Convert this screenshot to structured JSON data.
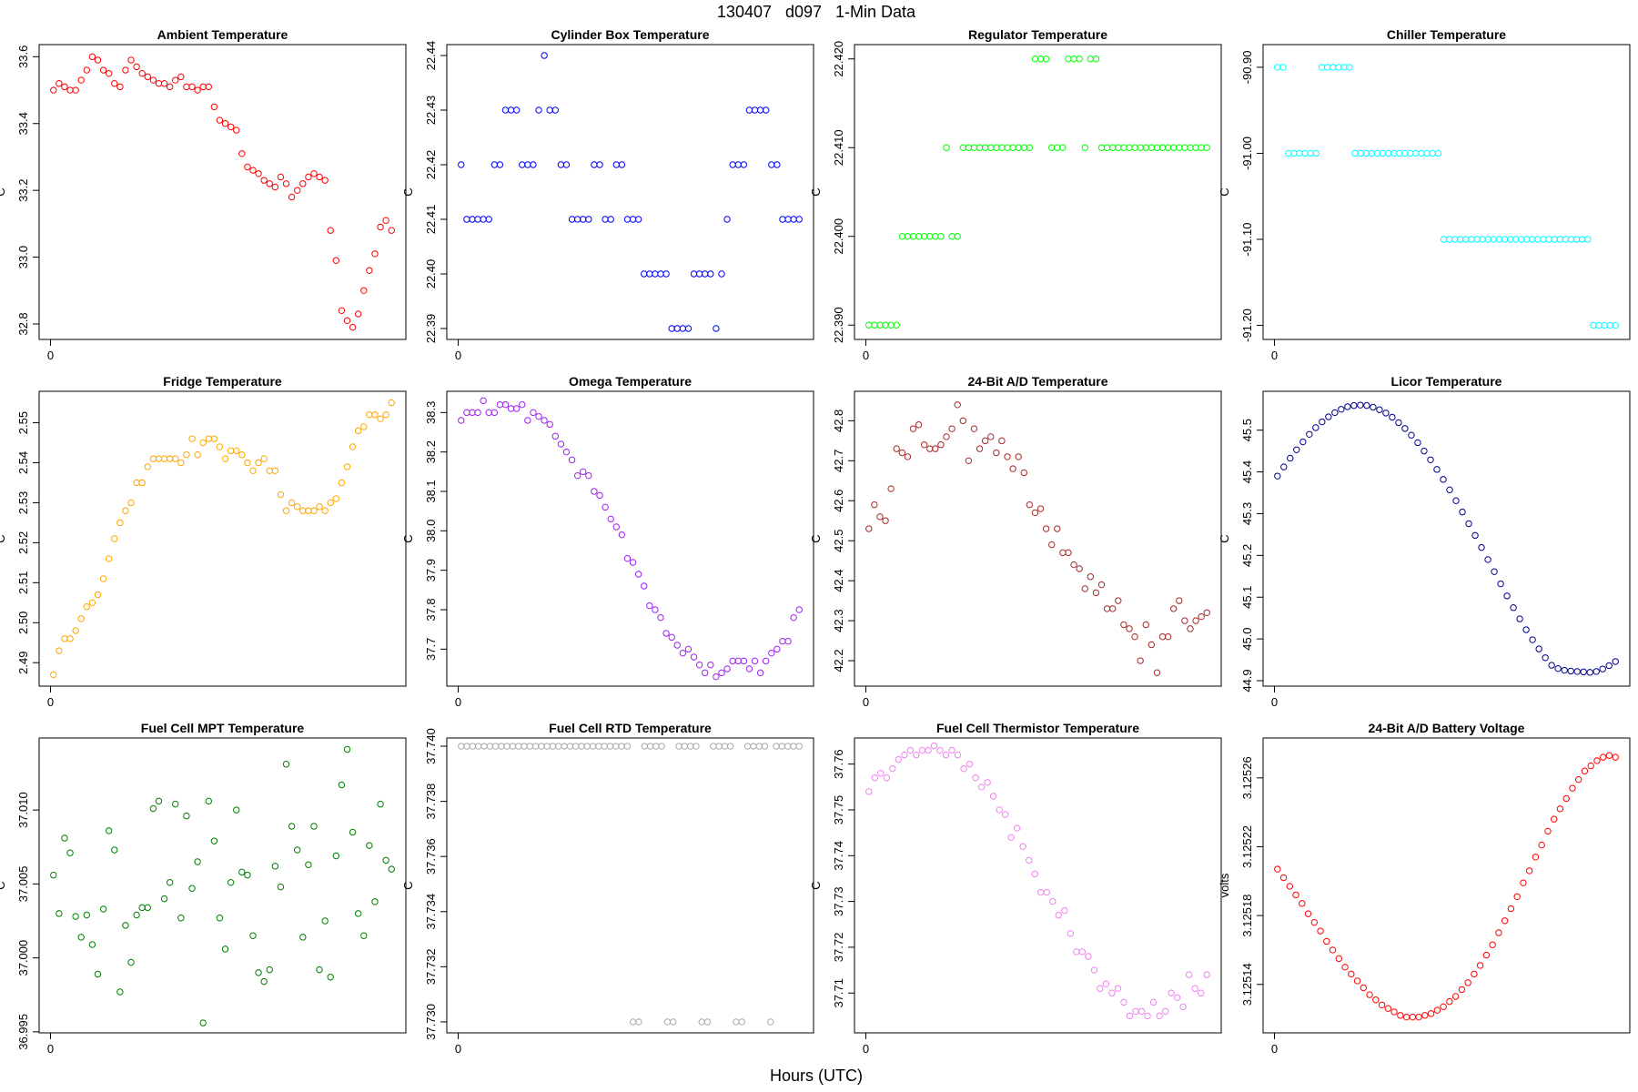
{
  "page": {
    "title": "130407   d097   1-Min Data",
    "xlabel": "Hours (UTC)"
  },
  "chart_data": [
    {
      "type": "scatter",
      "title": "Ambient Temperature",
      "ylabel": "C",
      "color": "#ff0000",
      "xlim": [
        -1,
        59
      ],
      "xticks": [
        "0"
      ],
      "ylim": [
        32.77,
        33.62
      ],
      "yticks": [
        "32.8",
        "33.0",
        "33.2",
        "33.4",
        "33.6"
      ],
      "ytickvals": [
        32.8,
        33.0,
        33.2,
        33.4,
        33.6
      ],
      "grid": false,
      "values": [
        33.5,
        33.52,
        33.51,
        33.5,
        33.5,
        33.53,
        33.56,
        33.6,
        33.59,
        33.56,
        33.55,
        33.52,
        33.51,
        33.56,
        33.59,
        33.57,
        33.55,
        33.54,
        33.53,
        33.52,
        33.52,
        33.51,
        33.53,
        33.54,
        33.51,
        33.51,
        33.5,
        33.51,
        33.51,
        33.45,
        33.41,
        33.4,
        33.39,
        33.38,
        33.31,
        33.27,
        33.26,
        33.25,
        33.23,
        33.22,
        33.21,
        33.24,
        33.22,
        33.18,
        33.2,
        33.22,
        33.24,
        33.25,
        33.24,
        33.23,
        33.08,
        32.99,
        32.84,
        32.81,
        32.79,
        32.83,
        32.9,
        32.96,
        33.01,
        33.09,
        33.11,
        33.08
      ]
    },
    {
      "type": "scatter",
      "title": "Cylinder Box Temperature",
      "ylabel": "C",
      "color": "#0000ff",
      "xlim": [
        -1,
        59
      ],
      "xticks": [
        "0"
      ],
      "ylim": [
        22.389,
        22.441
      ],
      "yticks": [
        "22.39",
        "22.40",
        "22.41",
        "22.42",
        "22.43",
        "22.44"
      ],
      "ytickvals": [
        22.39,
        22.4,
        22.41,
        22.42,
        22.43,
        22.44
      ],
      "grid": false,
      "values": [
        22.42,
        22.41,
        22.41,
        22.41,
        22.41,
        22.41,
        22.42,
        22.42,
        22.43,
        22.43,
        22.43,
        22.42,
        22.42,
        22.42,
        22.43,
        22.44,
        22.43,
        22.43,
        22.42,
        22.42,
        22.41,
        22.41,
        22.41,
        22.41,
        22.42,
        22.42,
        22.41,
        22.41,
        22.42,
        22.42,
        22.41,
        22.41,
        22.41,
        22.4,
        22.4,
        22.4,
        22.4,
        22.4,
        22.39,
        22.39,
        22.39,
        22.39,
        22.4,
        22.4,
        22.4,
        22.4,
        22.39,
        22.4,
        22.41,
        22.42,
        22.42,
        22.42,
        22.43,
        22.43,
        22.43,
        22.43,
        22.42,
        22.42,
        22.41,
        22.41,
        22.41,
        22.41
      ]
    },
    {
      "type": "scatter",
      "title": "Regulator Temperature",
      "ylabel": "C",
      "color": "#00ff00",
      "xlim": [
        -1,
        59
      ],
      "xticks": [
        "0"
      ],
      "ylim": [
        22.389,
        22.421
      ],
      "yticks": [
        "22.390",
        "22.400",
        "22.410",
        "22.420"
      ],
      "ytickvals": [
        22.39,
        22.4,
        22.41,
        22.42
      ],
      "grid": false,
      "values": [
        22.39,
        22.39,
        22.39,
        22.39,
        22.39,
        22.39,
        22.4,
        22.4,
        22.4,
        22.4,
        22.4,
        22.4,
        22.4,
        22.4,
        22.41,
        22.4,
        22.4,
        22.41,
        22.41,
        22.41,
        22.41,
        22.41,
        22.41,
        22.41,
        22.41,
        22.41,
        22.41,
        22.41,
        22.41,
        22.41,
        22.42,
        22.42,
        22.42,
        22.41,
        22.41,
        22.41,
        22.42,
        22.42,
        22.42,
        22.41,
        22.42,
        22.42,
        22.41,
        22.41,
        22.41,
        22.41,
        22.41,
        22.41,
        22.41,
        22.41,
        22.41,
        22.41,
        22.41,
        22.41,
        22.41,
        22.41,
        22.41,
        22.41,
        22.41,
        22.41,
        22.41,
        22.41
      ]
    },
    {
      "type": "scatter",
      "title": "Chiller Temperature",
      "ylabel": "C",
      "color": "#00ffff",
      "xlim": [
        -1,
        59
      ],
      "xticks": [
        "0"
      ],
      "ylim": [
        -91.21,
        -90.88
      ],
      "yticks": [
        "-91.20",
        "-91.10",
        "-91.00",
        "-90.90"
      ],
      "ytickvals": [
        -91.2,
        -91.1,
        -91.0,
        -90.9
      ],
      "grid": false,
      "values": [
        -90.9,
        -90.9,
        -91.0,
        -91.0,
        -91.0,
        -91.0,
        -91.0,
        -91.0,
        -90.9,
        -90.9,
        -90.9,
        -90.9,
        -90.9,
        -90.9,
        -91.0,
        -91.0,
        -91.0,
        -91.0,
        -91.0,
        -91.0,
        -91.0,
        -91.0,
        -91.0,
        -91.0,
        -91.0,
        -91.0,
        -91.0,
        -91.0,
        -91.0,
        -91.0,
        -91.1,
        -91.1,
        -91.1,
        -91.1,
        -91.1,
        -91.1,
        -91.1,
        -91.1,
        -91.1,
        -91.1,
        -91.1,
        -91.1,
        -91.1,
        -91.1,
        -91.1,
        -91.1,
        -91.1,
        -91.1,
        -91.1,
        -91.1,
        -91.1,
        -91.1,
        -91.1,
        -91.1,
        -91.1,
        -91.1,
        -91.1,
        -91.2,
        -91.2,
        -91.2,
        -91.2,
        -91.2
      ]
    },
    {
      "type": "scatter",
      "title": "Fridge Temperature",
      "ylabel": "C",
      "color": "#ffa500",
      "xlim": [
        -1,
        59
      ],
      "xticks": [
        "0"
      ],
      "ylim": [
        2.4855,
        2.5565
      ],
      "yticks": [
        "2.49",
        "2.50",
        "2.51",
        "2.52",
        "2.53",
        "2.54",
        "2.55"
      ],
      "ytickvals": [
        2.49,
        2.5,
        2.51,
        2.52,
        2.53,
        2.54,
        2.55
      ],
      "grid": false,
      "values": [
        2.487,
        2.493,
        2.496,
        2.496,
        2.498,
        2.501,
        2.504,
        2.505,
        2.507,
        2.511,
        2.516,
        2.521,
        2.525,
        2.528,
        2.53,
        2.535,
        2.535,
        2.539,
        2.541,
        2.541,
        2.541,
        2.541,
        2.541,
        2.54,
        2.542,
        2.546,
        2.542,
        2.545,
        2.546,
        2.546,
        2.544,
        2.541,
        2.543,
        2.543,
        2.542,
        2.54,
        2.538,
        2.54,
        2.541,
        2.538,
        2.538,
        2.532,
        2.528,
        2.53,
        2.529,
        2.528,
        2.528,
        2.528,
        2.529,
        2.528,
        2.53,
        2.531,
        2.535,
        2.539,
        2.544,
        2.548,
        2.549,
        2.552,
        2.552,
        2.551,
        2.552,
        2.555
      ]
    },
    {
      "type": "scatter",
      "title": "Omega Temperature",
      "ylabel": "C",
      "color": "#a020f0",
      "xlim": [
        -1,
        59
      ],
      "xticks": [
        "0"
      ],
      "ylim": [
        37.62,
        38.34
      ],
      "yticks": [
        "37.7",
        "37.8",
        "37.9",
        "38.0",
        "38.1",
        "38.2",
        "38.3"
      ],
      "ytickvals": [
        37.7,
        37.8,
        37.9,
        38.0,
        38.1,
        38.2,
        38.3
      ],
      "grid": false,
      "values": [
        38.28,
        38.3,
        38.3,
        38.3,
        38.33,
        38.3,
        38.3,
        38.32,
        38.32,
        38.31,
        38.31,
        38.32,
        38.28,
        38.3,
        38.29,
        38.28,
        38.27,
        38.24,
        38.22,
        38.2,
        38.18,
        38.14,
        38.15,
        38.14,
        38.1,
        38.09,
        38.06,
        38.03,
        38.01,
        37.99,
        37.93,
        37.92,
        37.89,
        37.86,
        37.81,
        37.8,
        37.78,
        37.74,
        37.73,
        37.71,
        37.69,
        37.7,
        37.68,
        37.66,
        37.64,
        37.66,
        37.63,
        37.64,
        37.65,
        37.67,
        37.67,
        37.67,
        37.65,
        37.67,
        37.64,
        37.67,
        37.69,
        37.7,
        37.72,
        37.72,
        37.78,
        37.8
      ]
    },
    {
      "type": "scatter",
      "title": "24-Bit A/D Temperature",
      "ylabel": "C",
      "color": "#a52a2a",
      "xlim": [
        -1,
        59
      ],
      "xticks": [
        "0"
      ],
      "ylim": [
        42.15,
        42.86
      ],
      "yticks": [
        "42.2",
        "42.3",
        "42.4",
        "42.5",
        "42.6",
        "42.7",
        "42.8"
      ],
      "ytickvals": [
        42.2,
        42.3,
        42.4,
        42.5,
        42.6,
        42.7,
        42.8
      ],
      "grid": false,
      "values": [
        42.53,
        42.59,
        42.56,
        42.55,
        42.63,
        42.73,
        42.72,
        42.71,
        42.78,
        42.79,
        42.74,
        42.73,
        42.73,
        42.74,
        42.76,
        42.78,
        42.84,
        42.8,
        42.7,
        42.78,
        42.73,
        42.75,
        42.76,
        42.72,
        42.75,
        42.71,
        42.68,
        42.71,
        42.67,
        42.59,
        42.57,
        42.58,
        42.53,
        42.49,
        42.53,
        42.47,
        42.47,
        42.44,
        42.43,
        42.38,
        42.41,
        42.37,
        42.39,
        42.33,
        42.33,
        42.35,
        42.29,
        42.28,
        42.26,
        42.2,
        42.29,
        42.24,
        42.17,
        42.26,
        42.26,
        42.33,
        42.35,
        42.3,
        42.28,
        42.3,
        42.31,
        42.32
      ]
    },
    {
      "type": "scatter",
      "title": "Licor Temperature",
      "ylabel": "C",
      "color": "#00008b",
      "xlim": [
        -1,
        59
      ],
      "xticks": [
        "0"
      ],
      "ylim": [
        44.9,
        45.58
      ],
      "yticks": [
        "44.9",
        "45.0",
        "45.1",
        "45.2",
        "45.3",
        "45.4",
        "45.5"
      ],
      "ytickvals": [
        44.9,
        45.0,
        45.1,
        45.2,
        45.3,
        45.4,
        45.5
      ],
      "grid": false,
      "values": [
        45.39,
        45.412,
        45.433,
        45.453,
        45.472,
        45.49,
        45.506,
        45.52,
        45.532,
        45.542,
        45.55,
        45.556,
        45.559,
        45.56,
        45.559,
        45.555,
        45.549,
        45.541,
        45.531,
        45.518,
        45.504,
        45.488,
        45.47,
        45.45,
        45.429,
        45.406,
        45.382,
        45.357,
        45.331,
        45.304,
        45.276,
        45.248,
        45.219,
        45.19,
        45.161,
        45.132,
        45.103,
        45.075,
        45.048,
        45.022,
        44.998,
        44.976,
        44.955,
        44.937,
        44.929,
        44.925,
        44.923,
        44.922,
        44.921,
        44.92,
        44.922,
        44.928,
        44.936,
        44.946
      ]
    },
    {
      "type": "scatter",
      "title": "Fuel Cell MPT Temperature",
      "ylabel": "C",
      "color": "#008000",
      "xlim": [
        -1,
        59
      ],
      "xticks": [
        "0"
      ],
      "ylim": [
        36.9953,
        37.0145
      ],
      "yticks": [
        "36.995",
        "37.000",
        "37.005",
        "37.010"
      ],
      "ytickvals": [
        36.995,
        37.0,
        37.005,
        37.01
      ],
      "grid": false,
      "values": [
        37.0056,
        37.003,
        37.0081,
        37.0071,
        37.0028,
        37.0014,
        37.0029,
        37.0009,
        36.9989,
        37.0033,
        37.0086,
        37.0073,
        36.9977,
        37.0022,
        36.9997,
        37.0029,
        37.0034,
        37.0034,
        37.0101,
        37.0106,
        37.004,
        37.0051,
        37.0104,
        37.0027,
        37.0096,
        37.0047,
        37.0065,
        36.9956,
        37.0106,
        37.0079,
        37.0027,
        37.0006,
        37.0051,
        37.01,
        37.0058,
        37.0056,
        37.0015,
        36.999,
        36.9984,
        36.9992,
        37.0062,
        37.0048,
        37.0131,
        37.0089,
        37.0073,
        37.0014,
        37.0063,
        37.0089,
        36.9992,
        37.0025,
        36.9987,
        37.0069,
        37.0117,
        37.0141,
        37.0085,
        37.003,
        37.0015,
        37.0076,
        37.0038,
        37.0104,
        37.0066,
        37.006
      ]
    },
    {
      "type": "scatter",
      "title": "Fuel Cell RTD Temperature",
      "ylabel": "C",
      "color": "#a9a9a9",
      "xlim": [
        -1,
        59
      ],
      "xticks": [
        "0"
      ],
      "ylim": [
        37.7298,
        37.7401
      ],
      "yticks": [
        "37.730",
        "37.732",
        "37.734",
        "37.736",
        "37.738",
        "37.740"
      ],
      "ytickvals": [
        37.73,
        37.732,
        37.734,
        37.736,
        37.738,
        37.74
      ],
      "grid": false,
      "values": [
        37.74,
        37.74,
        37.74,
        37.74,
        37.74,
        37.74,
        37.74,
        37.74,
        37.74,
        37.74,
        37.74,
        37.74,
        37.74,
        37.74,
        37.74,
        37.74,
        37.74,
        37.74,
        37.74,
        37.74,
        37.74,
        37.74,
        37.74,
        37.74,
        37.74,
        37.74,
        37.74,
        37.74,
        37.74,
        37.74,
        37.73,
        37.73,
        37.74,
        37.74,
        37.74,
        37.74,
        37.73,
        37.73,
        37.74,
        37.74,
        37.74,
        37.74,
        37.73,
        37.73,
        37.74,
        37.74,
        37.74,
        37.74,
        37.73,
        37.73,
        37.74,
        37.74,
        37.74,
        37.74,
        37.73,
        37.74,
        37.74,
        37.74,
        37.74,
        37.74
      ]
    },
    {
      "type": "scatter",
      "title": "Fuel Cell Thermistor Temperature",
      "ylabel": "C",
      "color": "#ee82ee",
      "xlim": [
        -1,
        59
      ],
      "xticks": [
        "0"
      ],
      "ylim": [
        37.7025,
        37.7645
      ],
      "yticks": [
        "37.71",
        "37.72",
        "37.73",
        "37.74",
        "37.75",
        "37.76"
      ],
      "ytickvals": [
        37.71,
        37.72,
        37.73,
        37.74,
        37.75,
        37.76
      ],
      "grid": false,
      "values": [
        37.754,
        37.757,
        37.758,
        37.757,
        37.759,
        37.761,
        37.762,
        37.763,
        37.762,
        37.763,
        37.763,
        37.764,
        37.763,
        37.762,
        37.763,
        37.762,
        37.759,
        37.76,
        37.757,
        37.755,
        37.756,
        37.753,
        37.75,
        37.749,
        37.744,
        37.746,
        37.742,
        37.739,
        37.736,
        37.732,
        37.732,
        37.73,
        37.727,
        37.728,
        37.723,
        37.719,
        37.719,
        37.718,
        37.715,
        37.711,
        37.712,
        37.71,
        37.711,
        37.708,
        37.705,
        37.706,
        37.706,
        37.705,
        37.708,
        37.705,
        37.706,
        37.71,
        37.709,
        37.707,
        37.714,
        37.711,
        37.71,
        37.714
      ]
    },
    {
      "type": "scatter",
      "title": "24-Bit A/D Battery Voltage",
      "ylabel": "volts",
      "color": "#ff0000",
      "xlim": [
        -1,
        59
      ],
      "xticks": [
        "0"
      ],
      "ylim": [
        3.125115,
        3.12528
      ],
      "yticks": [
        "3.12514",
        "3.12518",
        "3.12522",
        "3.12526"
      ],
      "ytickvals": [
        3.12514,
        3.12518,
        3.12522,
        3.12526
      ],
      "grid": false,
      "values": [
        3.125207,
        3.125202,
        3.125197,
        3.125192,
        3.125187,
        3.125181,
        3.125176,
        3.125171,
        3.125165,
        3.12516,
        3.125155,
        3.12515,
        3.125146,
        3.125142,
        3.125138,
        3.125134,
        3.125131,
        3.125128,
        3.125126,
        3.125124,
        3.125122,
        3.125121,
        3.125121,
        3.125121,
        3.125122,
        3.125123,
        3.125125,
        3.125127,
        3.12513,
        3.125133,
        3.125137,
        3.125141,
        3.125146,
        3.125151,
        3.125157,
        3.125163,
        3.12517,
        3.125177,
        3.125184,
        3.125191,
        3.125199,
        3.125206,
        3.125214,
        3.125221,
        3.125229,
        3.125236,
        3.125242,
        3.125248,
        3.125254,
        3.125259,
        3.125264,
        3.125267,
        3.12527,
        3.125272,
        3.125273,
        3.125272
      ]
    }
  ]
}
